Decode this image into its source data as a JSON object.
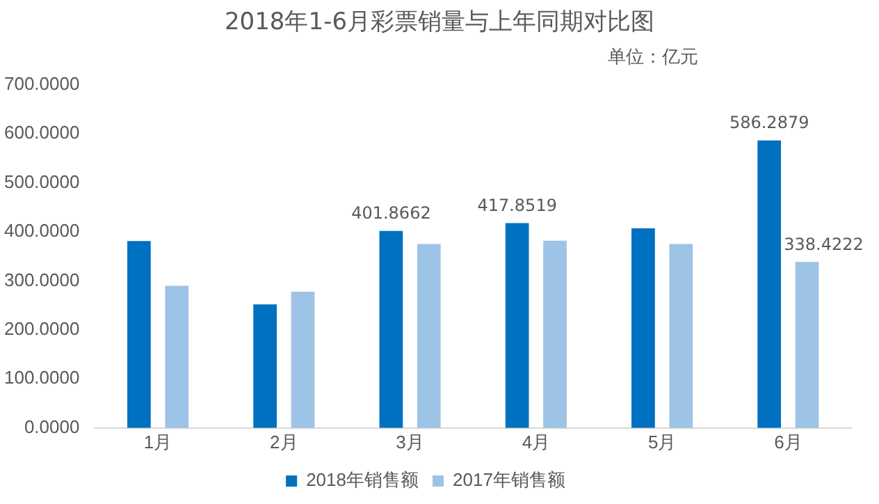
{
  "chart_data": {
    "type": "bar",
    "title": "2018年1-6月彩票销量与上年同期对比图",
    "subtitle": "单位：亿元",
    "categories": [
      "1月",
      "2月",
      "3月",
      "4月",
      "5月",
      "6月"
    ],
    "series": [
      {
        "name": "2018年销售额",
        "color": "#0070c0",
        "values": [
          381,
          252,
          401.8662,
          417.8519,
          407,
          586.2879
        ],
        "value_labels": [
          null,
          null,
          "401.8662",
          "417.8519",
          null,
          "586.2879"
        ]
      },
      {
        "name": "2017年销售额",
        "color": "#9dc3e6",
        "values": [
          290,
          278,
          375,
          382,
          375,
          338.4222
        ],
        "value_labels": [
          null,
          null,
          null,
          null,
          null,
          "338.4222"
        ]
      }
    ],
    "ylim": [
      0,
      700
    ],
    "yticks": [
      {
        "value": 0,
        "label": "0.0000"
      },
      {
        "value": 100,
        "label": "100.0000"
      },
      {
        "value": 200,
        "label": "200.0000"
      },
      {
        "value": 300,
        "label": "300.0000"
      },
      {
        "value": 400,
        "label": "400.0000"
      },
      {
        "value": 500,
        "label": "500.0000"
      },
      {
        "value": 600,
        "label": "600.0000"
      },
      {
        "value": 700,
        "label": "700.0000"
      }
    ],
    "grid": false,
    "legend": "bottom"
  }
}
